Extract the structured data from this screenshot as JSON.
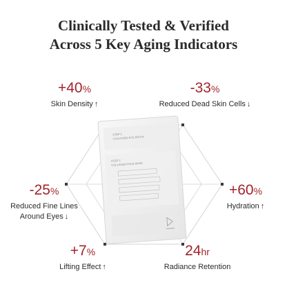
{
  "title": {
    "line1": "Clinically Tested & Verified",
    "line2": "Across 5 Key Aging Indicators"
  },
  "stats": [
    {
      "value": "+40",
      "unit": "%",
      "label": "Skin Density",
      "arrow": "↑"
    },
    {
      "value": "-33",
      "unit": "%",
      "label": "Reduced Dead Skin Cells",
      "arrow": "↓"
    },
    {
      "value": "-25",
      "unit": "%",
      "label_line1": "Reduced Fine Lines",
      "label_line2": "Around Eyes",
      "arrow": "↓"
    },
    {
      "value": "+60",
      "unit": "%",
      "label": "Hydration",
      "arrow": "↑"
    },
    {
      "value": "+7",
      "unit": "%",
      "label": "Lifting Effect",
      "arrow": "↑"
    },
    {
      "value": "24",
      "unit": "hr",
      "label": "Radiance Retention"
    }
  ],
  "product_sheet": {
    "printed_lines": [
      "STEP 1",
      "COLLAGEN EYE PATCH",
      "STEP 2",
      "COLLAGEN FACE MASK"
    ],
    "icon": "peel-here-icon"
  },
  "colors": {
    "accent": "#a3242b",
    "text": "#2b2b2b",
    "hexagon_lines": "#d3d3d3",
    "vertex_dot": "#3a3a3a"
  }
}
